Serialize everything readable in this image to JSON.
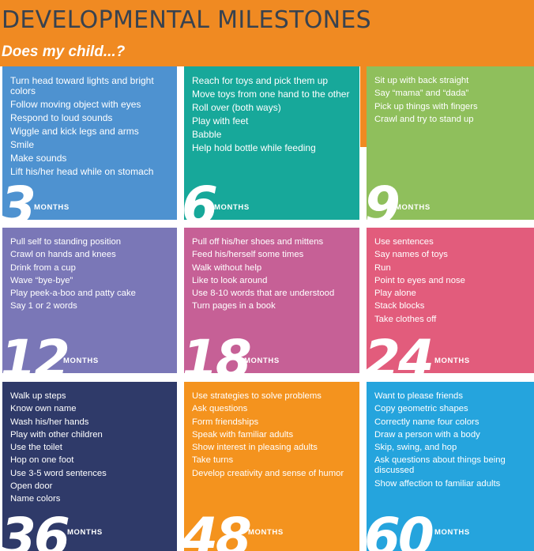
{
  "header": {
    "title": "DEVELOPMENTAL MILESTONES",
    "subtitle": "Does my child...?"
  },
  "colors": {
    "banner": "#f08a22",
    "title_text": "#38424f",
    "m3": "#4e92d0",
    "m6": "#17a89a",
    "m9": "#8fbf5c",
    "m12": "#7a77b7",
    "m18": "#c66096",
    "m24": "#e25c7c",
    "m36": "#2f3a69",
    "m48": "#f4931e",
    "m60": "#25a4dd"
  },
  "tiles": [
    {
      "age": "3",
      "unit": "MONTHS",
      "items": [
        "Turn head toward lights and bright colors",
        "Follow moving object with eyes",
        "Respond to loud sounds",
        "Wiggle and kick legs and arms",
        "Smile",
        "Make sounds",
        "Lift his/her head while on stomach"
      ]
    },
    {
      "age": "6",
      "unit": "MONTHS",
      "items": [
        "Reach for toys and pick them up",
        "Move toys from one hand to the other",
        "Roll over (both ways)",
        "Play with feet",
        "Babble",
        "Help hold bottle while feeding"
      ]
    },
    {
      "age": "9",
      "unit": "MONTHS",
      "items": [
        "Sit up with back straight",
        "Say “mama” and “dada”",
        "Pick up things with fingers",
        "Crawl and try to stand up"
      ]
    },
    {
      "age": "12",
      "unit": "MONTHS",
      "items": [
        "Pull self to standing position",
        "Crawl on hands and knees",
        "Drink from a cup",
        "Wave “bye-bye”",
        "Play peek-a-boo and patty cake",
        "Say 1 or 2 words"
      ]
    },
    {
      "age": "18",
      "unit": "MONTHS",
      "items": [
        "Pull off his/her shoes and mittens",
        "Feed his/herself some times",
        "Walk without help",
        "Like to look around",
        "Use 8-10 words that are understood",
        "Turn pages in a book"
      ]
    },
    {
      "age": "24",
      "unit": "MONTHS",
      "items": [
        "Use sentences",
        "Say names of toys",
        "Run",
        "Point to eyes and nose",
        "Play alone",
        "Stack blocks",
        "Take clothes off"
      ]
    },
    {
      "age": "36",
      "unit": "MONTHS",
      "items": [
        "Walk up steps",
        "Know own name",
        "Wash his/her hands",
        "Play with other children",
        "Use the toilet",
        "Hop on one foot",
        "Use 3-5 word sentences",
        "Open door",
        "Name colors"
      ]
    },
    {
      "age": "48",
      "unit": "MONTHS",
      "items": [
        "Use strategies to solve problems",
        "Ask questions",
        "Form friendships",
        "Speak with familiar adults",
        "Show interest in pleasing adults",
        "Take turns",
        "Develop creativity and sense of humor"
      ]
    },
    {
      "age": "60",
      "unit": "MONTHS",
      "items": [
        "Want to please friends",
        "Copy geometric shapes",
        "Correctly name four colors",
        "Draw a person with a body",
        "Skip, swing, and hop",
        "Ask questions about things being discussed",
        "Show affection to familiar adults"
      ]
    }
  ]
}
